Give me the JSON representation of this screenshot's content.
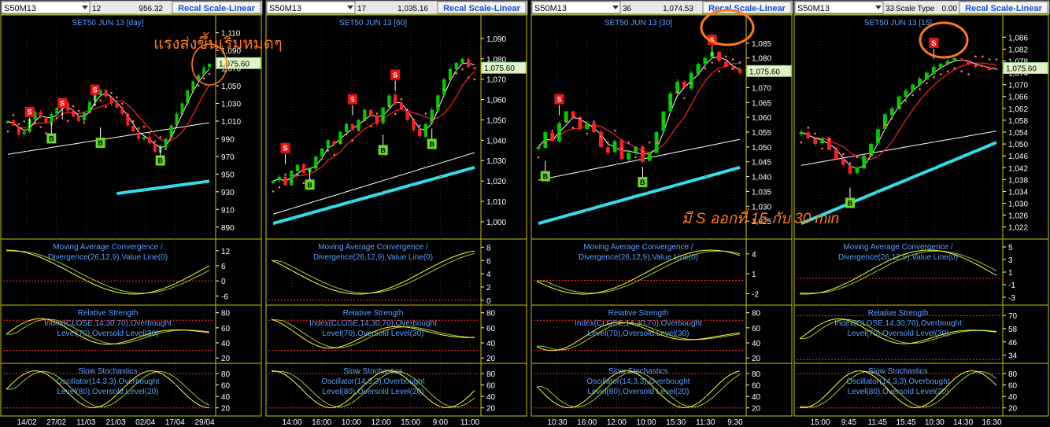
{
  "app": {
    "recal_label": "Recal Scale-Linear",
    "scale_type_label": "Scale Type",
    "scale_type_value": "0.00"
  },
  "colors": {
    "background": "#000000",
    "panel_border": "#c9c300",
    "header_bg": "#e8e8e8",
    "recal_text": "#1a4fd0",
    "price_up": "#00cc00",
    "price_down": "#ff2020",
    "ma_fast": "#ffffff",
    "ma_slow": "#ff2020",
    "ma_long": "#ffffff",
    "ma_trend": "#33dde8",
    "sar_dots": "#ff7070",
    "indicator_line": "#ffff33",
    "indicator_line_2": "#9acd32",
    "indicator_title": "#5aa0ff",
    "axis_text": "#ffffff",
    "level_line": "#ff3030",
    "annotation": "#ff7a1a",
    "sell_marker": "#ee1111",
    "buy_marker": "#66dd22"
  },
  "annotations": {
    "thai_strong_bounce": "แรงส่งขึ้นเริ่มหมดๆ",
    "thai_s_signal": "มี S ออกที่ 15 กับ 30 min"
  },
  "chart_data": [
    {
      "type": "candlestick",
      "symbol": "S50M13",
      "code": "12",
      "value": "956.32",
      "title": "SET50 JUN 13  [day]",
      "price_label": "1,075.60",
      "y_ticks": [
        "1,110",
        "1,090",
        "1,070",
        "1,050",
        "1,030",
        "1,010",
        "990",
        "970",
        "950",
        "930",
        "910",
        "890"
      ],
      "ylim": [
        880,
        1115
      ],
      "x_ticks": [
        "14/02",
        "27/02",
        "11/03",
        "21/03",
        "02/04",
        "17/04",
        "29/04"
      ],
      "close": [
        1010,
        1005,
        995,
        998,
        1012,
        1020,
        1015,
        1008,
        1018,
        1025,
        1030,
        1022,
        1015,
        1010,
        1020,
        1032,
        1040,
        1045,
        1038,
        1030,
        1025,
        1018,
        1005,
        998,
        990,
        992,
        985,
        975,
        980,
        990,
        1005,
        1018,
        1030,
        1045,
        1055,
        1062,
        1070,
        1075
      ],
      "sell_signals": [
        {
          "index": 4,
          "price": 1020
        },
        {
          "index": 10,
          "price": 1030
        },
        {
          "index": 16,
          "price": 1045
        }
      ],
      "buy_signals": [
        {
          "index": 8,
          "price": 990
        },
        {
          "index": 17,
          "price": 985
        },
        {
          "index": 28,
          "price": 965
        }
      ],
      "macd": {
        "title": "Moving Average Convergence / Divergence(26,12,9),Value Line(0)",
        "ticks": [
          "12",
          "6",
          "0",
          "-6"
        ],
        "ylim": [
          -9,
          16
        ]
      },
      "rsi": {
        "title": "Relative Strength Index(CLOSE,14,30,70),Overbought Level(70),Oversold Level(30)",
        "ticks": [
          "80",
          "60",
          "40",
          "20"
        ],
        "ylim": [
          15,
          88
        ]
      },
      "sto": {
        "title": "Slow Stochastics Oscillator(14,3,3),Overbought Level(80),Oversold Level(20)",
        "ticks": [
          "80",
          "60",
          "40",
          "20"
        ],
        "ylim": [
          10,
          95
        ]
      }
    },
    {
      "type": "candlestick",
      "symbol": "S50M13",
      "code": "17",
      "value": "1,035.16",
      "title": "SET50 JUN 13  [60]",
      "price_label": "1,075.60",
      "y_ticks": [
        "1,090",
        "1,080",
        "1,070",
        "1,060",
        "1,050",
        "1,040",
        "1,030",
        "1,020",
        "1,010",
        "1,000"
      ],
      "ylim": [
        993,
        1095
      ],
      "x_ticks": [
        "14:00",
        "16:00",
        "10:00",
        "12:00",
        "15:00",
        "9:00",
        "11:00"
      ],
      "close": [
        1020,
        1022,
        1018,
        1025,
        1028,
        1024,
        1026,
        1032,
        1036,
        1040,
        1038,
        1044,
        1048,
        1045,
        1050,
        1055,
        1052,
        1048,
        1056,
        1062,
        1058,
        1055,
        1050,
        1045,
        1042,
        1048,
        1055,
        1062,
        1070,
        1075,
        1078,
        1080,
        1076,
        1075
      ],
      "sell_signals": [
        {
          "index": 2,
          "price": 1036
        },
        {
          "index": 13,
          "price": 1060
        },
        {
          "index": 20,
          "price": 1072
        }
      ],
      "buy_signals": [
        {
          "index": 6,
          "price": 1018
        },
        {
          "index": 18,
          "price": 1035
        },
        {
          "index": 26,
          "price": 1038
        }
      ],
      "macd": {
        "title": "Moving Average Convergence / Divergence(26,12,9),Value Line(0)",
        "ticks": [
          "8",
          "6",
          "4",
          "2",
          "0"
        ],
        "ylim": [
          -0.5,
          9
        ]
      },
      "rsi": {
        "title": "Relative Strength Index(CLOSE,14,30,70),Overbought Level(70),Oversold Level(30)",
        "ticks": [
          "80",
          "60",
          "40",
          "20"
        ],
        "ylim": [
          15,
          88
        ]
      },
      "sto": {
        "title": "Slow Stochastics Oscillator(14,3,3),Overbought Level(80),Oversold Level(20)",
        "ticks": [
          "80",
          "60",
          "40",
          "20"
        ],
        "ylim": [
          10,
          95
        ]
      }
    },
    {
      "type": "candlestick",
      "symbol": "S50M13",
      "code": "36",
      "value": "1,074.53",
      "title": "SET50 JUN 13  [30]",
      "price_label": "1,075.60",
      "y_ticks": [
        "1,085",
        "1,080",
        "1,075",
        "1,070",
        "1,065",
        "1,060",
        "1,055",
        "1,050",
        "1,045",
        "1,040",
        "1,035",
        "1,030",
        "1,025"
      ],
      "ylim": [
        1020,
        1090
      ],
      "x_ticks": [
        "10:30",
        "16:00",
        "12:00",
        "10:00",
        "15:30",
        "11:30",
        "9:30"
      ],
      "close": [
        1050,
        1055,
        1052,
        1058,
        1062,
        1060,
        1056,
        1058,
        1055,
        1050,
        1048,
        1052,
        1046,
        1048,
        1050,
        1045,
        1048,
        1055,
        1062,
        1068,
        1072,
        1070,
        1075,
        1078,
        1080,
        1082,
        1079,
        1077,
        1076,
        1075
      ],
      "sell_signals": [
        {
          "index": 3,
          "price": 1066
        },
        {
          "index": 25,
          "price": 1086
        }
      ],
      "buy_signals": [
        {
          "index": 1,
          "price": 1040
        },
        {
          "index": 15,
          "price": 1038
        }
      ],
      "macd": {
        "title": "Moving Average Convergence / Divergence(26,12,9),Value Line(0)",
        "ticks": [
          "4",
          "1",
          "-2"
        ],
        "ylim": [
          -3.5,
          6
        ]
      },
      "rsi": {
        "title": "Relative Strength Index(CLOSE,14,30,70),Overbought Level(70),Oversold Level(30)",
        "ticks": [
          "80",
          "60",
          "40",
          "20"
        ],
        "ylim": [
          15,
          88
        ]
      },
      "sto": {
        "title": "Slow Stochastics Oscillator(14,3,3),Overbought Level(80),Oversold Level(20)",
        "ticks": [
          "80",
          "60",
          "40",
          "20"
        ],
        "ylim": [
          10,
          95
        ]
      }
    },
    {
      "type": "candlestick",
      "symbol": "S50M13",
      "code": "33",
      "value": "",
      "title": "SET50 JUN 13  [15]",
      "price_label": "1,075.60",
      "y_ticks": [
        "1,086",
        "1,082",
        "1,078",
        "1,074",
        "1,070",
        "1,066",
        "1,062",
        "1,058",
        "1,054",
        "1,050",
        "1,046",
        "1,042",
        "1,038",
        "1,034",
        "1,030",
        "1,026",
        "1,022"
      ],
      "ylim": [
        1019,
        1089
      ],
      "x_ticks": [
        "15:00",
        "9:45",
        "11:45",
        "15:45",
        "10:30",
        "14:30",
        "16:30"
      ],
      "close": [
        1054,
        1052,
        1050,
        1052,
        1048,
        1045,
        1043,
        1040,
        1042,
        1046,
        1050,
        1055,
        1060,
        1062,
        1066,
        1068,
        1070,
        1072,
        1074,
        1076,
        1077,
        1078,
        1079,
        1078,
        1077,
        1076,
        1076,
        1075,
        1075
      ],
      "sell_signals": [
        {
          "index": 19,
          "price": 1084
        }
      ],
      "buy_signals": [
        {
          "index": 7,
          "price": 1030
        }
      ],
      "macd": {
        "title": "Moving Average Convergence / Divergence(26,12,9),Value Line(0)",
        "ticks": [
          "5",
          "3",
          "1",
          "-1",
          "-3"
        ],
        "ylim": [
          -4,
          6
        ]
      },
      "rsi": {
        "title": "Relative Strength Index(CLOSE,14,30,70),Overbought Level(70),Oversold Level(30)",
        "ticks": [
          "70",
          "58",
          "46",
          "34"
        ],
        "ylim": [
          28,
          78
        ]
      },
      "sto": {
        "title": "Slow Stochastics Oscillator(14,3,3),Overbought Level(80),Oversold Level(20)",
        "ticks": [
          "80",
          "60",
          "40",
          "20"
        ],
        "ylim": [
          10,
          95
        ]
      }
    }
  ]
}
